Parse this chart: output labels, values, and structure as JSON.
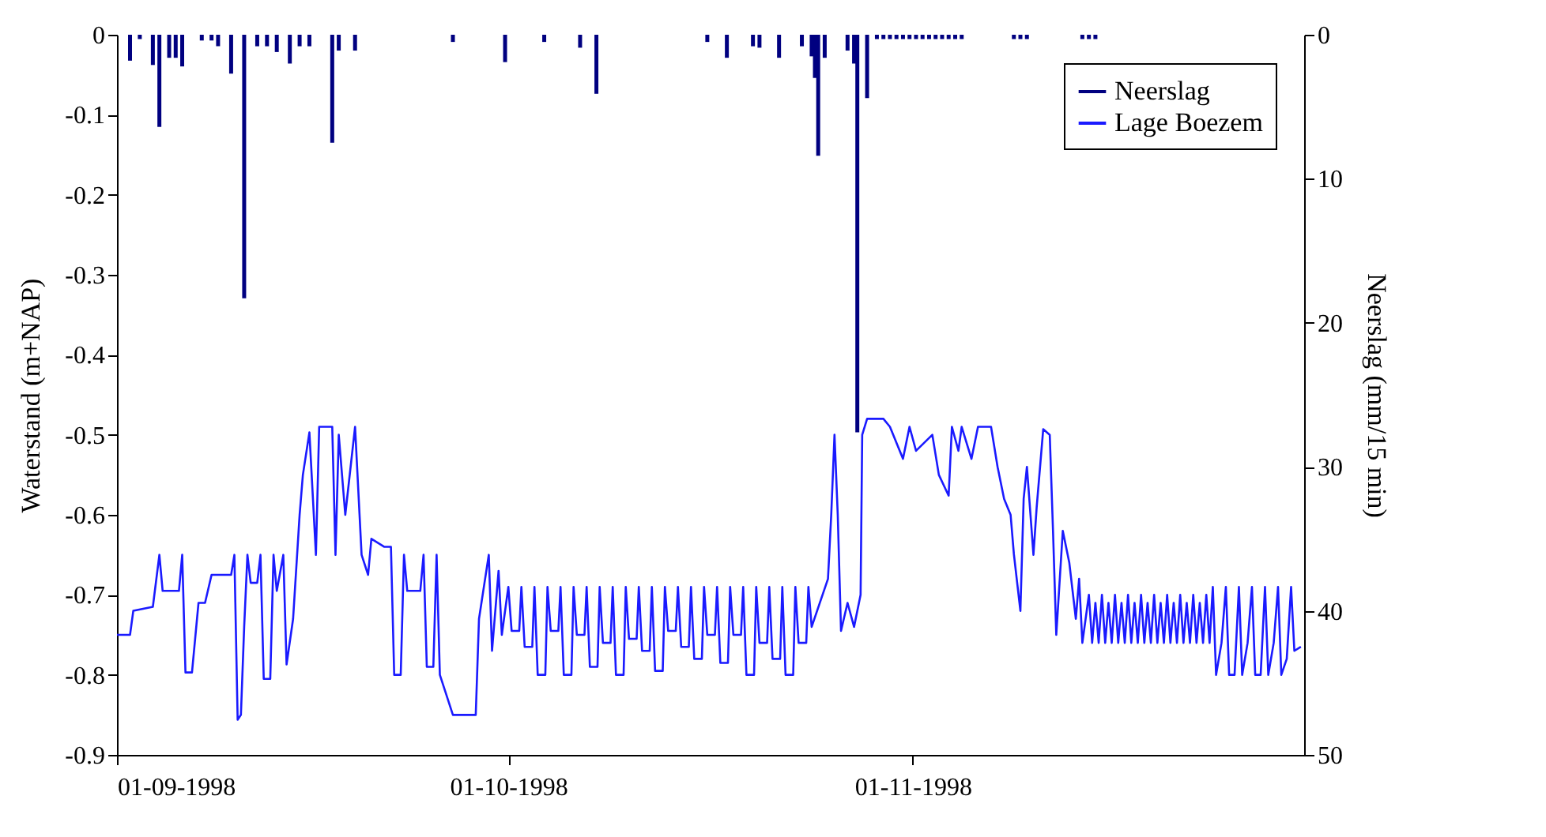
{
  "chart_data": {
    "type": "line",
    "ylabel": "Waterstand (m+NAP)",
    "y2label": "Neerslag (mm/15 min)",
    "xlim": [
      "1998-09-01",
      "1998-12-01"
    ],
    "xticks": [
      {
        "value": "1998-09-01",
        "label": "01-09-1998"
      },
      {
        "value": "1998-10-01",
        "label": "01-10-1998"
      },
      {
        "value": "1998-11-01",
        "label": "01-11-1998"
      }
    ],
    "ylim": [
      -0.9,
      0
    ],
    "yticks": [
      -0.9,
      -0.8,
      -0.7,
      -0.6,
      -0.5,
      -0.4,
      -0.3,
      -0.2,
      -0.1,
      0
    ],
    "y2lim": [
      50,
      0
    ],
    "y2ticks": [
      0,
      10,
      20,
      30,
      40,
      50
    ],
    "grid": false,
    "legend": "top right",
    "series": [
      {
        "name": "Neerslag",
        "type": "bar",
        "axis": "y2",
        "color": "#000080",
        "x": [
          "1998-09-02T00:00",
          "1998-09-02T18:00",
          "1998-09-03T18:00",
          "1998-09-04T06:00",
          "1998-09-05T00:00",
          "1998-09-05T12:00",
          "1998-09-06T00:00",
          "1998-09-07T12:00",
          "1998-09-08T06:00",
          "1998-09-08T18:00",
          "1998-09-09T18:00",
          "1998-09-10T18:00",
          "1998-09-11T18:00",
          "1998-09-12T12:00",
          "1998-09-13T06:00",
          "1998-09-14T06:00",
          "1998-09-15T00:00",
          "1998-09-15T18:00",
          "1998-09-17T12:00",
          "1998-09-18T00:00",
          "1998-09-19T06:00",
          "1998-09-26T18:00",
          "1998-09-30T18:00",
          "1998-10-03T18:00",
          "1998-10-06T12:00",
          "1998-10-07T18:00",
          "1998-10-16T06:00",
          "1998-10-17T18:00",
          "1998-10-19T18:00",
          "1998-10-20T06:00",
          "1998-10-21T18:00",
          "1998-10-23T12:00",
          "1998-10-24T06:00",
          "1998-10-24T12:00",
          "1998-10-24T18:00",
          "1998-10-25T06:00",
          "1998-10-27T00:00",
          "1998-10-27T12:00",
          "1998-10-27T18:00",
          "1998-10-28T12:00",
          "1998-10-29T06:00",
          "1998-10-29T18:00",
          "1998-10-30T06:00",
          "1998-10-30T18:00",
          "1998-10-31T06:00",
          "1998-10-31T18:00",
          "1998-11-01T06:00",
          "1998-11-01T18:00",
          "1998-11-02T06:00",
          "1998-11-02T18:00",
          "1998-11-03T06:00",
          "1998-11-03T18:00",
          "1998-11-04T06:00",
          "1998-11-04T18:00",
          "1998-11-08T18:00",
          "1998-11-09T06:00",
          "1998-11-09T18:00",
          "1998-11-14T00:00",
          "1998-11-14T12:00",
          "1998-11-15T00:00"
        ],
        "values": [
          1.8,
          0.3,
          2.1,
          6.4,
          1.6,
          1.6,
          2.2,
          0.4,
          0.4,
          0.8,
          2.7,
          18.3,
          0.8,
          0.8,
          1.2,
          2.0,
          0.8,
          0.8,
          7.5,
          1.1,
          1.1,
          0.5,
          1.9,
          0.5,
          0.9,
          4.1,
          0.5,
          1.6,
          0.8,
          0.9,
          1.6,
          0.8,
          1.5,
          3.0,
          8.4,
          1.6,
          1.1,
          2.0,
          27.6,
          4.4,
          0.3,
          0.3,
          0.3,
          0.3,
          0.3,
          0.3,
          0.3,
          0.3,
          0.3,
          0.3,
          0.3,
          0.3,
          0.3,
          0.3,
          0.3,
          0.3,
          0.3,
          0.3,
          0.3,
          0.3
        ]
      },
      {
        "name": "Lage Boezem",
        "color": "#1a1aff",
        "x": [
          "1998-09-01T00:00",
          "1998-09-02T00:00",
          "1998-09-02T06:00",
          "1998-09-03T18:00",
          "1998-09-04T06:00",
          "1998-09-04T12:00",
          "1998-09-05T18:00",
          "1998-09-06T00:00",
          "1998-09-06T06:00",
          "1998-09-06T18:00",
          "1998-09-07T06:00",
          "1998-09-07T18:00",
          "1998-09-08T06:00",
          "1998-09-09T18:00",
          "1998-09-10T00:00",
          "1998-09-10T06:00",
          "1998-09-10T12:00",
          "1998-09-10T18:00",
          "1998-09-11T00:00",
          "1998-09-11T06:00",
          "1998-09-11T18:00",
          "1998-09-12T00:00",
          "1998-09-12T06:00",
          "1998-09-12T18:00",
          "1998-09-13T00:00",
          "1998-09-13T06:00",
          "1998-09-13T18:00",
          "1998-09-14T00:00",
          "1998-09-14T12:00",
          "1998-09-15T00:00",
          "1998-09-15T06:00",
          "1998-09-15T18:00",
          "1998-09-16T06:00",
          "1998-09-16T12:00",
          "1998-09-17T12:00",
          "1998-09-17T18:00",
          "1998-09-18T00:00",
          "1998-09-18T12:00",
          "1998-09-19T06:00",
          "1998-09-19T18:00",
          "1998-09-20T06:00",
          "1998-09-20T12:00",
          "1998-09-21T12:00",
          "1998-09-22T00:00",
          "1998-09-22T06:00",
          "1998-09-22T18:00",
          "1998-09-23T00:00",
          "1998-09-23T06:00",
          "1998-09-24T06:00",
          "1998-09-24T12:00",
          "1998-09-24T18:00",
          "1998-09-25T06:00",
          "1998-09-25T12:00",
          "1998-09-25T18:00",
          "1998-09-26T18:00",
          "1998-09-28T12:00",
          "1998-09-28T18:00",
          "1998-09-29T12:00",
          "1998-09-29T18:00",
          "1998-09-30T06:00",
          "1998-09-30T12:00",
          "1998-10-01T00:00",
          "1998-10-01T06:00",
          "1998-10-01T20:00",
          "1998-10-02T00:00",
          "1998-10-02T06:00",
          "1998-10-02T20:00",
          "1998-10-03T00:00",
          "1998-10-03T06:00",
          "1998-10-03T20:00",
          "1998-10-04T00:00",
          "1998-10-04T06:00",
          "1998-10-04T20:00",
          "1998-10-05T00:00",
          "1998-10-05T06:00",
          "1998-10-05T20:00",
          "1998-10-06T00:00",
          "1998-10-06T06:00",
          "1998-10-06T20:00",
          "1998-10-07T00:00",
          "1998-10-07T06:00",
          "1998-10-07T20:00",
          "1998-10-08T00:00",
          "1998-10-08T06:00",
          "1998-10-08T20:00",
          "1998-10-09T00:00",
          "1998-10-09T06:00",
          "1998-10-09T20:00",
          "1998-10-10T00:00",
          "1998-10-10T06:00",
          "1998-10-10T20:00",
          "1998-10-11T00:00",
          "1998-10-11T06:00",
          "1998-10-11T20:00",
          "1998-10-12T00:00",
          "1998-10-12T06:00",
          "1998-10-12T20:00",
          "1998-10-13T00:00",
          "1998-10-13T06:00",
          "1998-10-13T20:00",
          "1998-10-14T00:00",
          "1998-10-14T06:00",
          "1998-10-14T20:00",
          "1998-10-15T00:00",
          "1998-10-15T06:00",
          "1998-10-15T20:00",
          "1998-10-16T00:00",
          "1998-10-16T06:00",
          "1998-10-16T20:00",
          "1998-10-17T00:00",
          "1998-10-17T06:00",
          "1998-10-17T20:00",
          "1998-10-18T00:00",
          "1998-10-18T06:00",
          "1998-10-18T20:00",
          "1998-10-19T00:00",
          "1998-10-19T06:00",
          "1998-10-19T20:00",
          "1998-10-20T00:00",
          "1998-10-20T06:00",
          "1998-10-20T20:00",
          "1998-10-21T00:00",
          "1998-10-21T06:00",
          "1998-10-21T20:00",
          "1998-10-22T00:00",
          "1998-10-22T06:00",
          "1998-10-22T20:00",
          "1998-10-23T00:00",
          "1998-10-23T06:00",
          "1998-10-23T20:00",
          "1998-10-24T00:00",
          "1998-10-24T06:00",
          "1998-10-25T12:00",
          "1998-10-25T18:00",
          "1998-10-26T00:00",
          "1998-10-26T06:00",
          "1998-10-26T12:00",
          "1998-10-27T00:00",
          "1998-10-27T12:00",
          "1998-10-28T00:00",
          "1998-10-28T03:00",
          "1998-10-28T12:00",
          "1998-10-29T18:00",
          "1998-10-30T06:00",
          "1998-10-31T06:00",
          "1998-10-31T18:00",
          "1998-11-01T06:00",
          "1998-11-02T12:00",
          "1998-11-03T00:00",
          "1998-11-03T18:00",
          "1998-11-04T00:00",
          "1998-11-04T12:00",
          "1998-11-04T18:00",
          "1998-11-05T12:00",
          "1998-11-06T00:00",
          "1998-11-07T00:00",
          "1998-11-07T12:00",
          "1998-11-08T00:00",
          "1998-11-08T12:00",
          "1998-11-08T18:00",
          "1998-11-09T06:00",
          "1998-11-09T12:00",
          "1998-11-09T18:00",
          "1998-11-10T06:00",
          "1998-11-10T12:00",
          "1998-11-11T00:00",
          "1998-11-11T12:00",
          "1998-11-11T18:00",
          "1998-11-12T00:00",
          "1998-11-12T12:00",
          "1998-11-13T00:00",
          "1998-11-13T12:00",
          "1998-11-13T18:00",
          "1998-11-14T00:00",
          "1998-11-14T12:00",
          "1998-11-14T18:00",
          "1998-11-15T00:00",
          "1998-11-15T06:00",
          "1998-11-15T12:00",
          "1998-11-15T18:00",
          "1998-11-16T00:00",
          "1998-11-16T06:00",
          "1998-11-16T12:00",
          "1998-11-16T18:00",
          "1998-11-17T00:00",
          "1998-11-17T06:00",
          "1998-11-17T12:00",
          "1998-11-17T18:00",
          "1998-11-18T00:00",
          "1998-11-18T06:00",
          "1998-11-18T12:00",
          "1998-11-18T18:00",
          "1998-11-19T00:00",
          "1998-11-19T06:00",
          "1998-11-19T12:00",
          "1998-11-19T18:00",
          "1998-11-20T00:00",
          "1998-11-20T06:00",
          "1998-11-20T12:00",
          "1998-11-20T18:00",
          "1998-11-21T00:00",
          "1998-11-21T06:00",
          "1998-11-21T12:00",
          "1998-11-21T18:00",
          "1998-11-22T00:00",
          "1998-11-22T06:00",
          "1998-11-22T12:00",
          "1998-11-22T18:00",
          "1998-11-23T00:00",
          "1998-11-23T06:00",
          "1998-11-23T12:00",
          "1998-11-23T18:00",
          "1998-11-24T00:00",
          "1998-11-24T06:00",
          "1998-11-24T16:00",
          "1998-11-25T00:00",
          "1998-11-25T06:00",
          "1998-11-25T16:00",
          "1998-11-26T00:00",
          "1998-11-26T06:00",
          "1998-11-26T16:00",
          "1998-11-27T00:00",
          "1998-11-27T06:00",
          "1998-11-27T16:00",
          "1998-11-28T00:00",
          "1998-11-28T06:00",
          "1998-11-28T16:00",
          "1998-11-29T00:00",
          "1998-11-29T06:00",
          "1998-11-29T16:00",
          "1998-11-30T00:00",
          "1998-11-30T06:00",
          "1998-11-30T18:00"
        ],
        "values": [
          -0.75,
          -0.75,
          -0.72,
          -0.715,
          -0.65,
          -0.695,
          -0.695,
          -0.65,
          -0.797,
          -0.797,
          -0.71,
          -0.71,
          -0.675,
          -0.675,
          -0.65,
          -0.856,
          -0.85,
          -0.74,
          -0.65,
          -0.685,
          -0.685,
          -0.65,
          -0.805,
          -0.805,
          -0.65,
          -0.695,
          -0.65,
          -0.787,
          -0.73,
          -0.6,
          -0.55,
          -0.497,
          -0.65,
          -0.49,
          -0.49,
          -0.65,
          -0.5,
          -0.6,
          -0.49,
          -0.65,
          -0.675,
          -0.63,
          -0.64,
          -0.64,
          -0.8,
          -0.8,
          -0.65,
          -0.695,
          -0.695,
          -0.65,
          -0.79,
          -0.79,
          -0.65,
          -0.8,
          -0.85,
          -0.85,
          -0.73,
          -0.65,
          -0.77,
          -0.67,
          -0.75,
          -0.69,
          -0.745,
          -0.745,
          -0.69,
          -0.765,
          -0.765,
          -0.69,
          -0.8,
          -0.8,
          -0.69,
          -0.745,
          -0.745,
          -0.69,
          -0.8,
          -0.8,
          -0.69,
          -0.75,
          -0.75,
          -0.69,
          -0.79,
          -0.79,
          -0.69,
          -0.76,
          -0.76,
          -0.69,
          -0.8,
          -0.8,
          -0.69,
          -0.755,
          -0.755,
          -0.69,
          -0.77,
          -0.77,
          -0.69,
          -0.795,
          -0.795,
          -0.69,
          -0.745,
          -0.745,
          -0.69,
          -0.765,
          -0.765,
          -0.69,
          -0.78,
          -0.78,
          -0.69,
          -0.75,
          -0.75,
          -0.69,
          -0.785,
          -0.785,
          -0.69,
          -0.75,
          -0.75,
          -0.69,
          -0.8,
          -0.8,
          -0.69,
          -0.76,
          -0.76,
          -0.69,
          -0.78,
          -0.78,
          -0.69,
          -0.8,
          -0.8,
          -0.69,
          -0.76,
          -0.76,
          -0.69,
          -0.74,
          -0.68,
          -0.6,
          -0.5,
          -0.6,
          -0.745,
          -0.71,
          -0.74,
          -0.7,
          -0.5,
          -0.48,
          -0.48,
          -0.49,
          -0.53,
          -0.49,
          -0.52,
          -0.5,
          -0.55,
          -0.576,
          -0.49,
          -0.52,
          -0.49,
          -0.53,
          -0.49,
          -0.49,
          -0.54,
          -0.58,
          -0.6,
          -0.649,
          -0.72,
          -0.58,
          -0.54,
          -0.65,
          -0.59,
          -0.493,
          -0.5,
          -0.62,
          -0.75,
          -0.62,
          -0.66,
          -0.73,
          -0.68,
          -0.76,
          -0.7,
          -0.76,
          -0.71,
          -0.76,
          -0.7,
          -0.76,
          -0.71,
          -0.76,
          -0.7,
          -0.76,
          -0.71,
          -0.76,
          -0.7,
          -0.76,
          -0.71,
          -0.76,
          -0.7,
          -0.76,
          -0.71,
          -0.76,
          -0.7,
          -0.76,
          -0.71,
          -0.76,
          -0.7,
          -0.76,
          -0.71,
          -0.76,
          -0.7,
          -0.76,
          -0.71,
          -0.76,
          -0.7,
          -0.76,
          -0.71,
          -0.76,
          -0.7,
          -0.76,
          -0.69,
          -0.8,
          -0.76,
          -0.69,
          -0.8,
          -0.8,
          -0.69,
          -0.8,
          -0.76,
          -0.69,
          -0.8,
          -0.8,
          -0.69,
          -0.8,
          -0.76,
          -0.69,
          -0.8,
          -0.78,
          -0.69,
          -0.77,
          -0.765
        ]
      }
    ]
  }
}
